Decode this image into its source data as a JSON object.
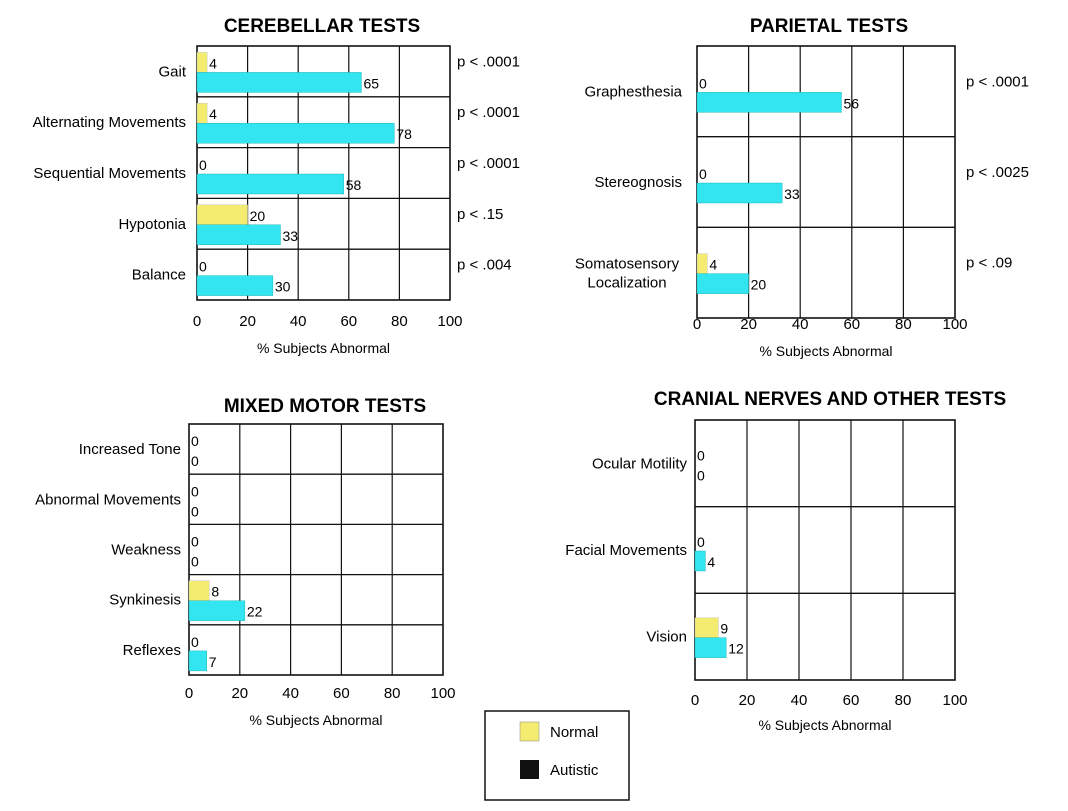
{
  "colors": {
    "normal": "#f4ec70",
    "autistic": "#33e5f1",
    "frame": "#111111"
  },
  "legend": {
    "normal_label": "Normal",
    "autistic_label": "Autistic",
    "autistic_swatch": "#111111"
  },
  "chart_data": [
    {
      "type": "bar",
      "title": "CEREBELLAR TESTS",
      "xlabel": "% Subjects Abnormal",
      "xlim": [
        0,
        100
      ],
      "xticks": [
        "0",
        "20",
        "40",
        "60",
        "80",
        "100"
      ],
      "categories": [
        "Gait",
        "Alternating Movements",
        "Sequential Movements",
        "Hypotonia",
        "Balance"
      ],
      "series": [
        {
          "name": "Normal",
          "values": [
            4,
            4,
            0,
            20,
            0
          ]
        },
        {
          "name": "Autistic",
          "values": [
            65,
            78,
            58,
            33,
            30
          ]
        }
      ],
      "pvalues": [
        "p < .0001",
        "p < .0001",
        "p < .0001",
        "p < .15",
        "p < .004"
      ]
    },
    {
      "type": "bar",
      "title": "PARIETAL TESTS",
      "xlabel": "% Subjects Abnormal",
      "xlim": [
        0,
        100
      ],
      "xticks": [
        "0",
        "20",
        "40",
        "60",
        "80",
        "100"
      ],
      "categories": [
        "Graphesthesia",
        "Stereognosis",
        "Somatosensory\nLocalization"
      ],
      "series": [
        {
          "name": "Normal",
          "values": [
            0,
            0,
            4
          ]
        },
        {
          "name": "Autistic",
          "values": [
            56,
            33,
            20
          ]
        }
      ],
      "pvalues": [
        "p < .0001",
        "p < .0025",
        "p < .09"
      ]
    },
    {
      "type": "bar",
      "title": "MIXED  MOTOR TESTS",
      "xlabel": "% Subjects Abnormal",
      "xlim": [
        0,
        100
      ],
      "xticks": [
        "0",
        "20",
        "40",
        "60",
        "80",
        "100"
      ],
      "categories": [
        "Increased Tone",
        "Abnormal Movements",
        "Weakness",
        "Synkinesis",
        "Reflexes"
      ],
      "series": [
        {
          "name": "Normal",
          "values": [
            0,
            0,
            0,
            8,
            0
          ]
        },
        {
          "name": "Autistic",
          "values": [
            0,
            0,
            0,
            22,
            7
          ]
        }
      ]
    },
    {
      "type": "bar",
      "title": "CRANIAL NERVES AND OTHER TESTS",
      "xlabel": "% Subjects Abnormal",
      "xlim": [
        0,
        100
      ],
      "xticks": [
        "0",
        "20",
        "40",
        "60",
        "80",
        "100"
      ],
      "categories": [
        "Ocular Motility",
        "Facial Movements",
        "Vision"
      ],
      "series": [
        {
          "name": "Normal",
          "values": [
            0,
            0,
            9
          ]
        },
        {
          "name": "Autistic",
          "values": [
            0,
            4,
            12
          ]
        }
      ]
    }
  ]
}
